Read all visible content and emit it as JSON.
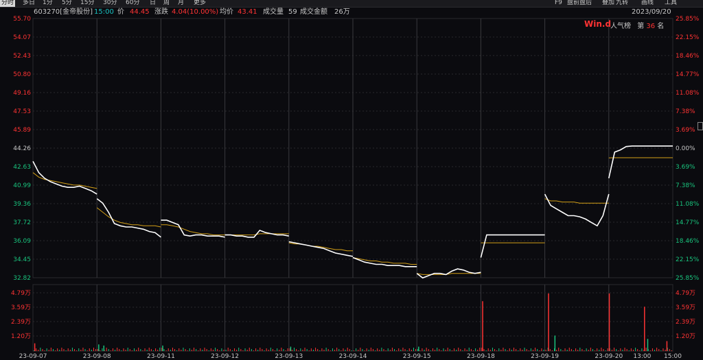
{
  "toolbar": {
    "left_items": [
      "分时",
      "多日",
      "1分",
      "5分",
      "15分",
      "30分",
      "60分",
      "日",
      "周",
      "月",
      "更多"
    ],
    "right_items": [
      "F9",
      "盘前盘后",
      "叠加",
      "九转",
      "画线",
      "工具"
    ]
  },
  "info": {
    "code_name": "603270[金帝股份]",
    "time": "15:00",
    "price_label": "价",
    "price": "44.45",
    "change_label": "涨跌",
    "change": "4.04(10.00%)",
    "avg_label": "均价",
    "avg": "43.41",
    "vol_label": "成交量",
    "vol": "59",
    "amount_label": "成交金额",
    "amount": "26万",
    "date": "2023/09/20"
  },
  "brand": "Win.d",
  "rank": {
    "label": "人气榜",
    "prefix": "第",
    "num": "36",
    "suffix": "名"
  },
  "colors": {
    "up": "#ff3333",
    "down": "#19c37d",
    "price_line": "#ffffff",
    "avg_line": "#d4a017",
    "grid": "#2a2a2e",
    "vline": "#3a3a3e"
  },
  "chart_data": {
    "type": "line",
    "price_ticks": [
      "55.70",
      "54.07",
      "52.43",
      "50.80",
      "49.16",
      "47.53",
      "45.89",
      "44.26",
      "42.63",
      "40.99",
      "39.36",
      "37.72",
      "36.09",
      "34.45",
      "32.82"
    ],
    "pct_ticks": [
      "25.85%",
      "22.15%",
      "18.46%",
      "14.77%",
      "11.08%",
      "7.38%",
      "3.69%",
      "0.00%",
      "3.69%",
      "7.38%",
      "11.08%",
      "14.77%",
      "18.46%",
      "22.15%",
      "25.85%"
    ],
    "pct_ticks_up_count": 7,
    "vol_ticks": [
      "4.79万",
      "3.59万",
      "2.39万",
      "1.20万"
    ],
    "x_labels": [
      "23-09-07",
      "23-09-08",
      "23-09-11",
      "23-09-12",
      "23-09-13",
      "23-09-14",
      "23-09-15",
      "23-09-18",
      "23-09-19",
      "23-09-20",
      "13:00",
      "15:00"
    ],
    "ylim": [
      32.82,
      55.7
    ],
    "days": [
      {
        "label": "23-09-07",
        "price": [
          43.1,
          42.1,
          41.6,
          41.3,
          41.1,
          40.9,
          40.8,
          40.8,
          40.9,
          40.7,
          40.5,
          40.2
        ],
        "avg": [
          42.1,
          41.7,
          41.5,
          41.4,
          41.3,
          41.2,
          41.1,
          41.0,
          41.0,
          40.9,
          40.8,
          40.7
        ]
      },
      {
        "label": "23-09-08",
        "price": [
          39.8,
          39.4,
          38.6,
          37.6,
          37.4,
          37.3,
          37.3,
          37.2,
          37.1,
          36.9,
          36.8,
          36.4
        ],
        "avg": [
          39.0,
          38.6,
          38.2,
          37.9,
          37.7,
          37.6,
          37.5,
          37.5,
          37.4,
          37.4,
          37.4,
          37.3
        ]
      },
      {
        "label": "23-09-11",
        "price": [
          37.9,
          37.9,
          37.7,
          37.5,
          36.6,
          36.5,
          36.6,
          36.6,
          36.5,
          36.5,
          36.5,
          36.4
        ],
        "avg": [
          37.5,
          37.5,
          37.4,
          37.3,
          37.1,
          36.9,
          36.8,
          36.7,
          36.7,
          36.6,
          36.6,
          36.6
        ]
      },
      {
        "label": "23-09-12",
        "price": [
          36.6,
          36.6,
          36.5,
          36.5,
          36.4,
          36.4,
          37.0,
          36.8,
          36.7,
          36.6,
          36.6,
          36.5
        ],
        "avg": [
          36.6,
          36.6,
          36.6,
          36.6,
          36.6,
          36.6,
          36.7,
          36.7,
          36.7,
          36.7,
          36.7,
          36.7
        ]
      },
      {
        "label": "23-09-13",
        "price": [
          36.0,
          35.9,
          35.8,
          35.7,
          35.6,
          35.5,
          35.4,
          35.2,
          35.0,
          34.9,
          34.8,
          34.7
        ],
        "avg": [
          35.9,
          35.8,
          35.8,
          35.7,
          35.6,
          35.6,
          35.5,
          35.4,
          35.3,
          35.3,
          35.2,
          35.2
        ]
      },
      {
        "label": "23-09-14",
        "price": [
          34.6,
          34.4,
          34.2,
          34.1,
          34.0,
          34.0,
          33.9,
          33.9,
          33.9,
          33.8,
          33.8,
          33.8
        ],
        "avg": [
          34.6,
          34.5,
          34.4,
          34.3,
          34.3,
          34.2,
          34.2,
          34.1,
          34.1,
          34.1,
          34.0,
          34.0
        ]
      },
      {
        "label": "23-09-15",
        "price": [
          33.2,
          32.8,
          33.0,
          33.2,
          33.2,
          33.1,
          33.4,
          33.6,
          33.5,
          33.3,
          33.2,
          33.3
        ],
        "avg": [
          33.2,
          33.1,
          33.1,
          33.1,
          33.1,
          33.1,
          33.2,
          33.2,
          33.2,
          33.2,
          33.2,
          33.2
        ]
      },
      {
        "label": "23-09-18",
        "price": [
          34.6,
          36.6,
          36.6,
          36.6,
          36.6,
          36.6,
          36.6,
          36.6,
          36.6,
          36.6,
          36.6,
          36.6
        ],
        "avg": [
          35.9,
          35.9,
          35.9,
          35.9,
          35.9,
          35.9,
          35.9,
          35.9,
          35.9,
          35.9,
          35.9,
          35.9
        ]
      },
      {
        "label": "23-09-19",
        "price": [
          40.2,
          39.2,
          38.9,
          38.6,
          38.3,
          38.3,
          38.2,
          38.0,
          37.7,
          37.4,
          38.3,
          40.2
        ],
        "avg": [
          39.8,
          39.6,
          39.6,
          39.5,
          39.5,
          39.5,
          39.4,
          39.4,
          39.4,
          39.4,
          39.4,
          39.4
        ]
      },
      {
        "label": "23-09-20",
        "price": [
          41.6,
          43.9,
          44.1,
          44.4,
          44.45,
          44.45,
          44.45,
          44.45,
          44.45,
          44.45,
          44.45,
          44.45
        ],
        "avg": [
          43.4,
          43.41,
          43.41,
          43.41,
          43.41,
          43.41,
          43.41,
          43.41,
          43.41,
          43.41,
          43.41,
          43.41
        ]
      }
    ],
    "volume_spikes": [
      {
        "day": 7,
        "pos": 0.02,
        "value": 45000,
        "dir": "up"
      },
      {
        "day": 8,
        "pos": 0.05,
        "value": 52000,
        "dir": "up"
      },
      {
        "day": 8,
        "pos": 0.15,
        "value": 14000,
        "dir": "down"
      },
      {
        "day": 9,
        "pos": 0.0,
        "value": 52000,
        "dir": "up"
      },
      {
        "day": 9,
        "pos": 0.55,
        "value": 40000,
        "dir": "up"
      },
      {
        "day": 9,
        "pos": 0.6,
        "value": 11000,
        "dir": "down"
      },
      {
        "day": 9,
        "pos": 0.9,
        "value": 9000,
        "dir": "up"
      },
      {
        "day": 0,
        "pos": 0.02,
        "value": 7000,
        "dir": "up"
      },
      {
        "day": 1,
        "pos": 0.02,
        "value": 6000,
        "dir": "down"
      },
      {
        "day": 1,
        "pos": 0.1,
        "value": 5000,
        "dir": "down"
      },
      {
        "day": 2,
        "pos": 0.02,
        "value": 5000,
        "dir": "down"
      },
      {
        "day": 4,
        "pos": 0.02,
        "value": 4000,
        "dir": "down"
      },
      {
        "day": 6,
        "pos": 0.02,
        "value": 4000,
        "dir": "down"
      }
    ]
  }
}
